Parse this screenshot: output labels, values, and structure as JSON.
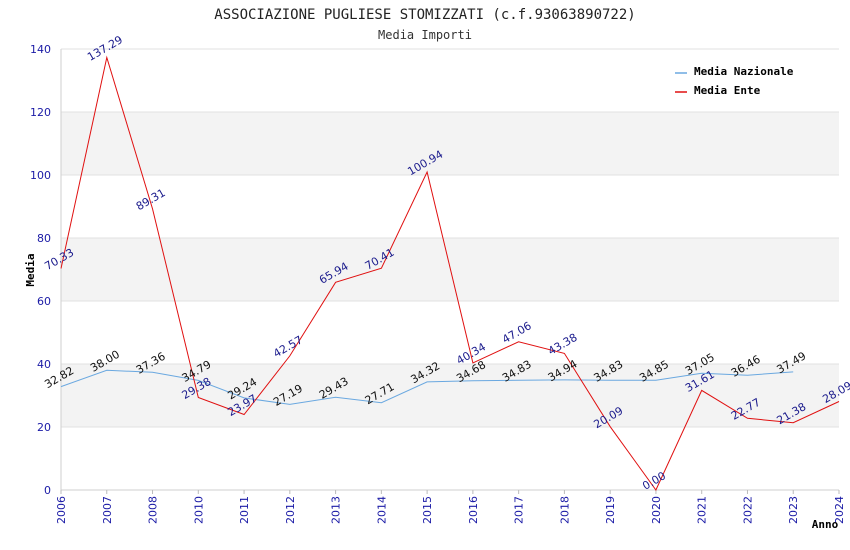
{
  "chart_data": {
    "type": "line",
    "title": "ASSOCIAZIONE PUGLIESE STOMIZZATI (c.f.93063890722)",
    "subtitle": "Media Importi",
    "xlabel": "Anno",
    "ylabel": "Media",
    "ylim": [
      0,
      140
    ],
    "yticks": [
      0,
      20,
      40,
      60,
      80,
      100,
      120,
      140
    ],
    "categories": [
      "2006",
      "2007",
      "2008",
      "2010",
      "2011",
      "2012",
      "2013",
      "2014",
      "2015",
      "2016",
      "2017",
      "2018",
      "2019",
      "2020",
      "2021",
      "2022",
      "2023",
      "2024"
    ],
    "grid": true,
    "legend_position": "top-right",
    "series": [
      {
        "name": "Media Nazionale",
        "color": "#6aa8e0",
        "values": [
          32.82,
          38.0,
          37.36,
          34.79,
          29.24,
          27.19,
          29.43,
          27.71,
          34.32,
          34.68,
          34.83,
          34.94,
          34.83,
          34.85,
          37.05,
          36.46,
          37.49,
          null
        ],
        "labels": [
          "32.82",
          "38.00",
          "37.36",
          "34.79",
          "29.24",
          "27.19",
          "29.43",
          "27.71",
          "34.32",
          "34.68",
          "34.83",
          "34.94",
          "34.83",
          "34.85",
          "37.05",
          "36.46",
          "37.49",
          ""
        ]
      },
      {
        "name": "Media Ente",
        "color": "#e01010",
        "values": [
          70.33,
          137.29,
          89.31,
          29.38,
          23.97,
          42.57,
          65.94,
          70.41,
          100.94,
          40.34,
          47.06,
          43.38,
          20.09,
          0.0,
          31.61,
          22.77,
          21.38,
          28.09
        ],
        "labels": [
          "70.33",
          "137.29",
          "89.31",
          "29.38",
          "23.97",
          "42.57",
          "65.94",
          "70.41",
          "100.94",
          "40.34",
          "47.06",
          "43.38",
          "20.09",
          "0.00",
          "31.61",
          "22.77",
          "21.38",
          "28.09"
        ]
      }
    ]
  }
}
